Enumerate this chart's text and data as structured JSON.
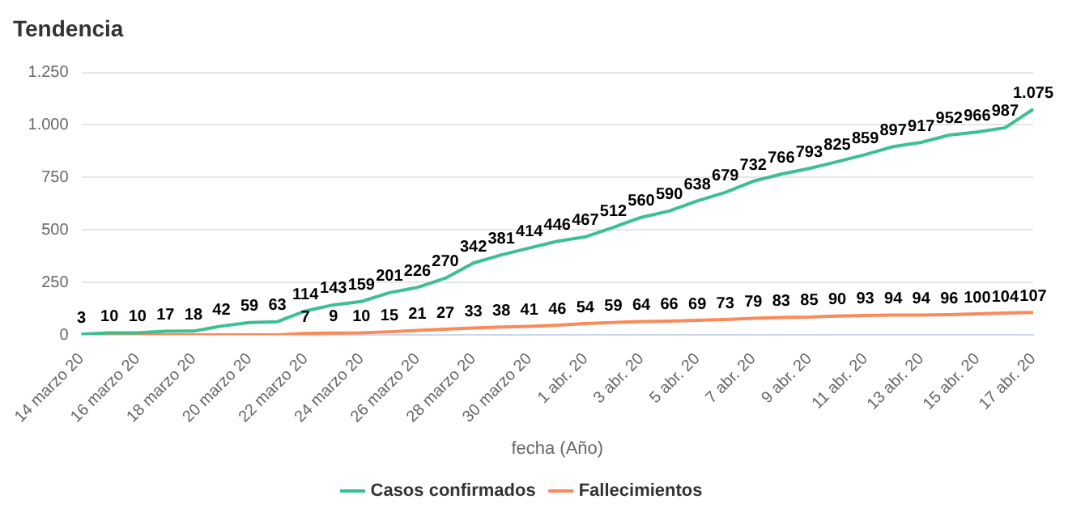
{
  "chart_data": {
    "type": "line",
    "title": "Tendencia",
    "xlabel": "fecha (Año)",
    "categories": [
      "14 marzo 20",
      null,
      "16 marzo 20",
      null,
      "18 marzo 20",
      null,
      "20 marzo 20",
      null,
      "22 marzo 20",
      null,
      "24 marzo 20",
      null,
      "26 marzo 20",
      null,
      "28 marzo 20",
      null,
      "30 marzo 20",
      null,
      "1 abr. 20",
      null,
      "3 abr. 20",
      null,
      "5 abr. 20",
      null,
      "7 abr. 20",
      null,
      "9 abr. 20",
      null,
      "11 abr. 20",
      null,
      "13 abr. 20",
      null,
      "15 abr. 20",
      null,
      "17 abr. 20"
    ],
    "series": [
      {
        "name": "Casos confirmados",
        "color": "#3dbf94",
        "values": [
          3,
          10,
          10,
          17,
          18,
          42,
          59,
          63,
          114,
          143,
          159,
          201,
          226,
          270,
          342,
          381,
          414,
          446,
          467,
          512,
          560,
          590,
          638,
          679,
          732,
          766,
          793,
          825,
          859,
          897,
          917,
          952,
          966,
          987,
          1075
        ],
        "value_labels": [
          "3",
          "10",
          "10",
          "17",
          "18",
          "42",
          "59",
          "63",
          "114",
          "143",
          "159",
          "201",
          "226",
          "270",
          "342",
          "381",
          "414",
          "446",
          "467",
          "512",
          "560",
          "590",
          "638",
          "679",
          "732",
          "766",
          "793",
          "825",
          "859",
          "897",
          "917",
          "952",
          "966",
          "987",
          "1.075"
        ]
      },
      {
        "name": "Fallecimientos",
        "color": "#fa8a5a",
        "values": [
          0,
          0,
          0,
          0,
          0,
          0,
          0,
          0,
          7,
          9,
          10,
          15,
          21,
          27,
          33,
          38,
          41,
          46,
          54,
          59,
          64,
          66,
          69,
          73,
          79,
          83,
          85,
          90,
          93,
          94,
          94,
          96,
          100,
          104,
          107
        ],
        "value_labels": [
          null,
          null,
          null,
          null,
          null,
          null,
          null,
          null,
          "7",
          "9",
          "10",
          "15",
          "21",
          "27",
          "33",
          "38",
          "41",
          "46",
          "54",
          "59",
          "64",
          "66",
          "69",
          "73",
          "79",
          "83",
          "85",
          "90",
          "93",
          "94",
          "94",
          "96",
          "100",
          "104",
          "107"
        ]
      }
    ],
    "ylim": [
      0,
      1250
    ],
    "yticks": [
      0,
      250,
      500,
      750,
      {
        "value": 1000,
        "label": "1.000"
      },
      {
        "value": 1250,
        "label": "1.250"
      }
    ],
    "grid": "y",
    "legend": "bottom",
    "marker": "none",
    "line_style": "solid"
  }
}
